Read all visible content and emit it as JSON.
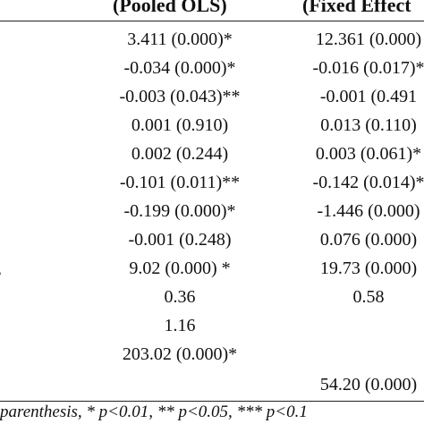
{
  "table": {
    "headers": {
      "col1": "(Pooled OLS)",
      "col2": "(Fixed Effect"
    },
    "rows": [
      {
        "c1": "3.411 (0.000)*",
        "c2": "12.361 (0.000)"
      },
      {
        "c1": "-0.034 (0.000)*",
        "c2": "-0.016 (0.017)*"
      },
      {
        "c1": "-0.003 (0.043)**",
        "c2": "-0.001 (0.491"
      },
      {
        "c1": "0.001 (0.910)",
        "c2": "0.013 (0.110)"
      },
      {
        "c1": "0.002 (0.244)",
        "c2": "0.003 (0.061)*"
      },
      {
        "c1": "-0.101 (0.011)**",
        "c2": "-0.142 (0.014)*"
      },
      {
        "c1": "-0.199 (0.000)*",
        "c2": "-1.446 (0.000)"
      },
      {
        "c1": "-0.001 (0.248)",
        "c2": "0.076 (0.000)"
      },
      {
        "c1": "9.02 (0.000) *",
        "c2": "19.73 (0.000)"
      },
      {
        "c1": "0.36",
        "c2": "0.58"
      },
      {
        "c1": "1.16",
        "c2": ""
      },
      {
        "c1": "203.02 (0.000)*",
        "c2": ""
      },
      {
        "c1": "",
        "c2": "54.20 (0.000)"
      }
    ],
    "left_marker": ",",
    "footnote": "parenthesis, * p<0.01, ** p<0.05, *** p<0.1"
  }
}
